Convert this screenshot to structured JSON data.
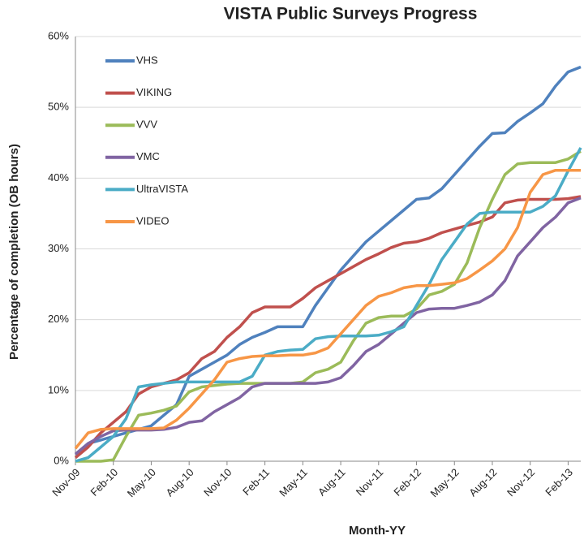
{
  "chart_data": {
    "type": "line",
    "title": "VISTA Public Surveys Progress",
    "x_label": "Month-YY",
    "y_label": "Percentage of completion (OB hours)",
    "categories": [
      "Nov-09",
      null,
      null,
      "Feb-10",
      null,
      null,
      "May-10",
      null,
      null,
      "Aug-10",
      null,
      null,
      "Nov-10",
      null,
      null,
      "Feb-11",
      null,
      null,
      "May-11",
      null,
      null,
      "Aug-11",
      null,
      null,
      "Nov-11",
      null,
      null,
      "Feb-12",
      null,
      null,
      "May-12",
      null,
      null,
      "Aug-12",
      null,
      null,
      "Nov-12",
      null,
      null,
      "Feb-13",
      null
    ],
    "series": [
      {
        "name": "VHS",
        "color": "#4f81bd",
        "values": [
          1,
          2.5,
          3,
          3.5,
          4,
          4.5,
          5,
          6.5,
          8,
          12,
          13,
          14,
          15,
          16.5,
          17.5,
          18.2,
          19,
          19,
          19,
          22,
          24.5,
          27,
          29,
          31,
          32.5,
          34,
          35.5,
          37,
          37.2,
          38.5,
          40.5,
          42.5,
          44.5,
          46.3,
          46.4,
          48,
          49.2,
          50.5,
          53,
          55,
          55.7
        ]
      },
      {
        "name": "VIKING",
        "color": "#c0504d",
        "values": [
          0.5,
          2,
          4,
          5.5,
          7,
          9.5,
          10.5,
          11,
          11.5,
          12.5,
          14.5,
          15.5,
          17.5,
          19,
          21,
          21.8,
          21.8,
          21.8,
          23,
          24.5,
          25.5,
          26.5,
          27.5,
          28.5,
          29.3,
          30.2,
          30.8,
          31,
          31.5,
          32.3,
          32.8,
          33.3,
          33.8,
          34.5,
          36.5,
          36.9,
          37,
          37,
          37,
          37.1,
          37.4
        ]
      },
      {
        "name": "VVV",
        "color": "#9bbb59",
        "values": [
          0,
          0,
          0,
          0.2,
          3.5,
          6.5,
          6.8,
          7.2,
          7.8,
          9.8,
          10.5,
          10.7,
          10.9,
          11,
          11,
          11,
          11,
          11,
          11.2,
          12.5,
          13,
          14,
          17,
          19.5,
          20.3,
          20.5,
          20.5,
          21.5,
          23.5,
          24,
          25,
          28,
          33,
          37,
          40.5,
          42,
          42.2,
          42.2,
          42.2,
          42.7,
          43.8
        ]
      },
      {
        "name": "VMC",
        "color": "#8064a2",
        "values": [
          1,
          2.5,
          3.5,
          4.3,
          4.4,
          4.4,
          4.4,
          4.5,
          4.8,
          5.5,
          5.7,
          7,
          8,
          9,
          10.5,
          11,
          11,
          11,
          11,
          11,
          11.2,
          11.8,
          13.5,
          15.5,
          16.5,
          18,
          19.5,
          21,
          21.5,
          21.6,
          21.6,
          22,
          22.5,
          23.5,
          25.5,
          29,
          31,
          33,
          34.5,
          36.5,
          37.2
        ]
      },
      {
        "name": "UltraVISTA",
        "color": "#4bacc6",
        "values": [
          0,
          0.5,
          2,
          3.5,
          6,
          10.5,
          10.8,
          11,
          11.2,
          11.2,
          11.2,
          11.2,
          11.2,
          11.2,
          12,
          15,
          15.5,
          15.7,
          15.8,
          17.3,
          17.6,
          17.7,
          17.7,
          17.7,
          17.8,
          18.3,
          19,
          22,
          25,
          28.5,
          31,
          33.5,
          35,
          35.2,
          35.2,
          35.2,
          35.2,
          36,
          37.5,
          41,
          44.3
        ]
      },
      {
        "name": "VIDEO",
        "color": "#f79646",
        "values": [
          1.8,
          4,
          4.5,
          4.6,
          4.6,
          4.6,
          4.6,
          4.7,
          5.8,
          7.5,
          9.5,
          11.5,
          14,
          14.5,
          14.8,
          14.9,
          14.9,
          15,
          15,
          15.3,
          16,
          18,
          20,
          22,
          23.3,
          23.8,
          24.5,
          24.8,
          24.8,
          25,
          25.2,
          25.8,
          27,
          28.3,
          30,
          33,
          38,
          40.5,
          41.1,
          41.1,
          41.1
        ]
      }
    ],
    "ylim": [
      0,
      60
    ],
    "yticks": [
      {
        "value": 0,
        "label": "0%"
      },
      {
        "value": 10,
        "label": "10%"
      },
      {
        "value": 20,
        "label": "20%"
      },
      {
        "value": 30,
        "label": "30%"
      },
      {
        "value": 40,
        "label": "40%"
      },
      {
        "value": 50,
        "label": "50%"
      },
      {
        "value": 60,
        "label": "60%"
      }
    ],
    "grid": true,
    "legend": "upper left"
  }
}
